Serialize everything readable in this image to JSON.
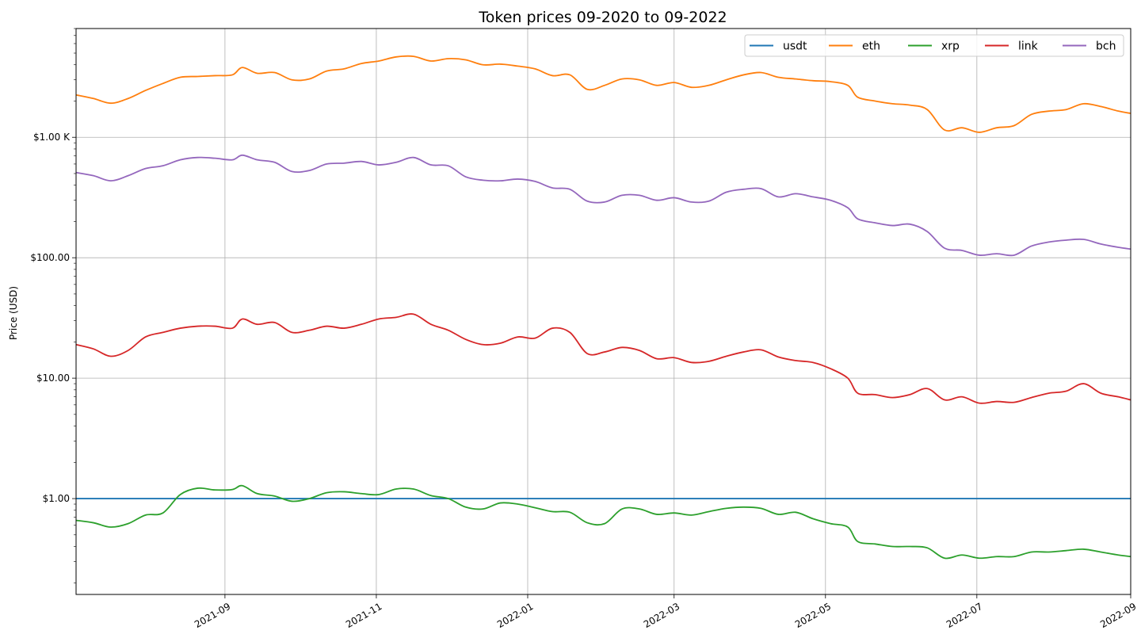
{
  "chart_data": {
    "type": "line",
    "title": "Token prices 09-2020 to 09-2022",
    "xlabel": "",
    "ylabel": "Price (USD)",
    "y_scale": "log",
    "ylim": [
      0.16,
      8000
    ],
    "xlim": [
      "2021-07-03",
      "2022-09-01"
    ],
    "grid": true,
    "legend_position": "top-right",
    "x_tick_labels": [
      "2021-09",
      "2021-11",
      "2022-01",
      "2022-03",
      "2022-05",
      "2022-07",
      "2022-09"
    ],
    "x_tick_dates": [
      "2021-09-01",
      "2021-11-01",
      "2022-01-01",
      "2022-03-01",
      "2022-05-01",
      "2022-07-01",
      "2022-09-01"
    ],
    "y_tick_labels": [
      "$1.00",
      "$10.00",
      "$100.00",
      "$1.00 K"
    ],
    "y_tick_values": [
      1,
      10,
      100,
      1000
    ],
    "series": [
      {
        "name": "usdt",
        "color": "#1f77b4",
        "points": [
          [
            "2021-07-03",
            1.0
          ],
          [
            "2022-09-01",
            1.0
          ]
        ]
      },
      {
        "name": "eth",
        "color": "#ff7f0e",
        "points": [
          [
            "2021-07-03",
            2250
          ],
          [
            "2021-07-10",
            2100
          ],
          [
            "2021-07-17",
            1920
          ],
          [
            "2021-07-24",
            2100
          ],
          [
            "2021-07-31",
            2450
          ],
          [
            "2021-08-07",
            2800
          ],
          [
            "2021-08-14",
            3150
          ],
          [
            "2021-08-21",
            3200
          ],
          [
            "2021-08-28",
            3250
          ],
          [
            "2021-09-04",
            3300
          ],
          [
            "2021-09-08",
            3800
          ],
          [
            "2021-09-14",
            3400
          ],
          [
            "2021-09-21",
            3450
          ],
          [
            "2021-09-28",
            3000
          ],
          [
            "2021-10-05",
            3050
          ],
          [
            "2021-10-12",
            3550
          ],
          [
            "2021-10-19",
            3700
          ],
          [
            "2021-10-26",
            4100
          ],
          [
            "2021-11-02",
            4300
          ],
          [
            "2021-11-09",
            4650
          ],
          [
            "2021-11-16",
            4700
          ],
          [
            "2021-11-23",
            4300
          ],
          [
            "2021-11-30",
            4500
          ],
          [
            "2021-12-07",
            4400
          ],
          [
            "2021-12-14",
            4000
          ],
          [
            "2021-12-21",
            4050
          ],
          [
            "2021-12-28",
            3900
          ],
          [
            "2022-01-04",
            3700
          ],
          [
            "2022-01-11",
            3250
          ],
          [
            "2022-01-18",
            3300
          ],
          [
            "2022-01-25",
            2500
          ],
          [
            "2022-02-01",
            2700
          ],
          [
            "2022-02-08",
            3050
          ],
          [
            "2022-02-15",
            3000
          ],
          [
            "2022-02-22",
            2700
          ],
          [
            "2022-03-01",
            2850
          ],
          [
            "2022-03-08",
            2600
          ],
          [
            "2022-03-15",
            2700
          ],
          [
            "2022-03-22",
            3000
          ],
          [
            "2022-03-29",
            3300
          ],
          [
            "2022-04-05",
            3450
          ],
          [
            "2022-04-12",
            3150
          ],
          [
            "2022-04-19",
            3050
          ],
          [
            "2022-04-26",
            2950
          ],
          [
            "2022-05-03",
            2900
          ],
          [
            "2022-05-10",
            2700
          ],
          [
            "2022-05-14",
            2150
          ],
          [
            "2022-05-21",
            2000
          ],
          [
            "2022-05-28",
            1900
          ],
          [
            "2022-06-04",
            1850
          ],
          [
            "2022-06-11",
            1700
          ],
          [
            "2022-06-18",
            1150
          ],
          [
            "2022-06-25",
            1200
          ],
          [
            "2022-07-02",
            1100
          ],
          [
            "2022-07-09",
            1200
          ],
          [
            "2022-07-16",
            1250
          ],
          [
            "2022-07-23",
            1550
          ],
          [
            "2022-07-30",
            1650
          ],
          [
            "2022-08-06",
            1700
          ],
          [
            "2022-08-13",
            1900
          ],
          [
            "2022-08-20",
            1800
          ],
          [
            "2022-08-27",
            1650
          ],
          [
            "2022-09-01",
            1580
          ]
        ]
      },
      {
        "name": "xrp",
        "color": "#2ca02c",
        "points": [
          [
            "2021-07-03",
            0.66
          ],
          [
            "2021-07-10",
            0.63
          ],
          [
            "2021-07-17",
            0.58
          ],
          [
            "2021-07-24",
            0.62
          ],
          [
            "2021-07-31",
            0.73
          ],
          [
            "2021-08-07",
            0.76
          ],
          [
            "2021-08-14",
            1.08
          ],
          [
            "2021-08-21",
            1.22
          ],
          [
            "2021-08-28",
            1.18
          ],
          [
            "2021-09-04",
            1.19
          ],
          [
            "2021-09-08",
            1.28
          ],
          [
            "2021-09-14",
            1.1
          ],
          [
            "2021-09-21",
            1.05
          ],
          [
            "2021-09-28",
            0.95
          ],
          [
            "2021-10-05",
            1.0
          ],
          [
            "2021-10-12",
            1.12
          ],
          [
            "2021-10-19",
            1.14
          ],
          [
            "2021-10-26",
            1.1
          ],
          [
            "2021-11-02",
            1.08
          ],
          [
            "2021-11-09",
            1.2
          ],
          [
            "2021-11-16",
            1.2
          ],
          [
            "2021-11-23",
            1.06
          ],
          [
            "2021-11-30",
            1.0
          ],
          [
            "2021-12-07",
            0.85
          ],
          [
            "2021-12-14",
            0.82
          ],
          [
            "2021-12-21",
            0.92
          ],
          [
            "2021-12-28",
            0.9
          ],
          [
            "2022-01-04",
            0.84
          ],
          [
            "2022-01-11",
            0.78
          ],
          [
            "2022-01-18",
            0.77
          ],
          [
            "2022-01-25",
            0.63
          ],
          [
            "2022-02-01",
            0.62
          ],
          [
            "2022-02-08",
            0.82
          ],
          [
            "2022-02-15",
            0.82
          ],
          [
            "2022-02-22",
            0.74
          ],
          [
            "2022-03-01",
            0.76
          ],
          [
            "2022-03-08",
            0.73
          ],
          [
            "2022-03-15",
            0.78
          ],
          [
            "2022-03-22",
            0.83
          ],
          [
            "2022-03-29",
            0.85
          ],
          [
            "2022-04-05",
            0.83
          ],
          [
            "2022-04-12",
            0.74
          ],
          [
            "2022-04-19",
            0.77
          ],
          [
            "2022-04-26",
            0.68
          ],
          [
            "2022-05-03",
            0.62
          ],
          [
            "2022-05-10",
            0.58
          ],
          [
            "2022-05-14",
            0.44
          ],
          [
            "2022-05-21",
            0.42
          ],
          [
            "2022-05-28",
            0.4
          ],
          [
            "2022-06-04",
            0.4
          ],
          [
            "2022-06-11",
            0.39
          ],
          [
            "2022-06-18",
            0.32
          ],
          [
            "2022-06-25",
            0.34
          ],
          [
            "2022-07-02",
            0.32
          ],
          [
            "2022-07-09",
            0.33
          ],
          [
            "2022-07-16",
            0.33
          ],
          [
            "2022-07-23",
            0.36
          ],
          [
            "2022-07-30",
            0.36
          ],
          [
            "2022-08-06",
            0.37
          ],
          [
            "2022-08-13",
            0.38
          ],
          [
            "2022-08-20",
            0.36
          ],
          [
            "2022-08-27",
            0.34
          ],
          [
            "2022-09-01",
            0.33
          ]
        ]
      },
      {
        "name": "link",
        "color": "#d62728",
        "points": [
          [
            "2021-07-03",
            19
          ],
          [
            "2021-07-10",
            17.5
          ],
          [
            "2021-07-17",
            15.2
          ],
          [
            "2021-07-24",
            17
          ],
          [
            "2021-07-31",
            22
          ],
          [
            "2021-08-07",
            24
          ],
          [
            "2021-08-14",
            26
          ],
          [
            "2021-08-21",
            27
          ],
          [
            "2021-08-28",
            27
          ],
          [
            "2021-09-04",
            26
          ],
          [
            "2021-09-08",
            31
          ],
          [
            "2021-09-14",
            28
          ],
          [
            "2021-09-21",
            29
          ],
          [
            "2021-09-28",
            24
          ],
          [
            "2021-10-05",
            25
          ],
          [
            "2021-10-12",
            27
          ],
          [
            "2021-10-19",
            26
          ],
          [
            "2021-10-26",
            28
          ],
          [
            "2021-11-02",
            31
          ],
          [
            "2021-11-09",
            32
          ],
          [
            "2021-11-16",
            34
          ],
          [
            "2021-11-23",
            28
          ],
          [
            "2021-11-30",
            25
          ],
          [
            "2021-12-07",
            21
          ],
          [
            "2021-12-14",
            19
          ],
          [
            "2021-12-21",
            19.5
          ],
          [
            "2021-12-28",
            22
          ],
          [
            "2022-01-04",
            21.5
          ],
          [
            "2022-01-11",
            26
          ],
          [
            "2022-01-18",
            24
          ],
          [
            "2022-01-25",
            16
          ],
          [
            "2022-02-01",
            16.5
          ],
          [
            "2022-02-08",
            18
          ],
          [
            "2022-02-15",
            17
          ],
          [
            "2022-02-22",
            14.5
          ],
          [
            "2022-03-01",
            14.8
          ],
          [
            "2022-03-08",
            13.5
          ],
          [
            "2022-03-15",
            13.8
          ],
          [
            "2022-03-22",
            15.2
          ],
          [
            "2022-03-29",
            16.5
          ],
          [
            "2022-04-05",
            17.2
          ],
          [
            "2022-04-12",
            15
          ],
          [
            "2022-04-19",
            14
          ],
          [
            "2022-04-26",
            13.5
          ],
          [
            "2022-05-03",
            12
          ],
          [
            "2022-05-10",
            10
          ],
          [
            "2022-05-14",
            7.5
          ],
          [
            "2022-05-21",
            7.3
          ],
          [
            "2022-05-28",
            6.9
          ],
          [
            "2022-06-04",
            7.3
          ],
          [
            "2022-06-11",
            8.2
          ],
          [
            "2022-06-18",
            6.6
          ],
          [
            "2022-06-25",
            7
          ],
          [
            "2022-07-02",
            6.2
          ],
          [
            "2022-07-09",
            6.4
          ],
          [
            "2022-07-16",
            6.3
          ],
          [
            "2022-07-23",
            6.9
          ],
          [
            "2022-07-30",
            7.5
          ],
          [
            "2022-08-06",
            7.8
          ],
          [
            "2022-08-13",
            9
          ],
          [
            "2022-08-20",
            7.5
          ],
          [
            "2022-08-27",
            7
          ],
          [
            "2022-09-01",
            6.6
          ]
        ]
      },
      {
        "name": "bch",
        "color": "#9467bd",
        "points": [
          [
            "2021-07-03",
            510
          ],
          [
            "2021-07-10",
            480
          ],
          [
            "2021-07-17",
            435
          ],
          [
            "2021-07-24",
            480
          ],
          [
            "2021-07-31",
            550
          ],
          [
            "2021-08-07",
            580
          ],
          [
            "2021-08-14",
            650
          ],
          [
            "2021-08-21",
            680
          ],
          [
            "2021-08-28",
            670
          ],
          [
            "2021-09-04",
            650
          ],
          [
            "2021-09-08",
            710
          ],
          [
            "2021-09-14",
            650
          ],
          [
            "2021-09-21",
            620
          ],
          [
            "2021-09-28",
            520
          ],
          [
            "2021-10-05",
            530
          ],
          [
            "2021-10-12",
            600
          ],
          [
            "2021-10-19",
            610
          ],
          [
            "2021-10-26",
            630
          ],
          [
            "2021-11-02",
            590
          ],
          [
            "2021-11-09",
            620
          ],
          [
            "2021-11-16",
            680
          ],
          [
            "2021-11-23",
            590
          ],
          [
            "2021-11-30",
            580
          ],
          [
            "2021-12-07",
            470
          ],
          [
            "2021-12-14",
            440
          ],
          [
            "2021-12-21",
            435
          ],
          [
            "2021-12-28",
            450
          ],
          [
            "2022-01-04",
            430
          ],
          [
            "2022-01-11",
            380
          ],
          [
            "2022-01-18",
            370
          ],
          [
            "2022-01-25",
            295
          ],
          [
            "2022-02-01",
            290
          ],
          [
            "2022-02-08",
            330
          ],
          [
            "2022-02-15",
            330
          ],
          [
            "2022-02-22",
            300
          ],
          [
            "2022-03-01",
            315
          ],
          [
            "2022-03-08",
            290
          ],
          [
            "2022-03-15",
            295
          ],
          [
            "2022-03-22",
            350
          ],
          [
            "2022-03-29",
            370
          ],
          [
            "2022-04-05",
            375
          ],
          [
            "2022-04-12",
            320
          ],
          [
            "2022-04-19",
            340
          ],
          [
            "2022-04-26",
            320
          ],
          [
            "2022-05-03",
            300
          ],
          [
            "2022-05-10",
            260
          ],
          [
            "2022-05-14",
            210
          ],
          [
            "2022-05-21",
            195
          ],
          [
            "2022-05-28",
            185
          ],
          [
            "2022-06-04",
            190
          ],
          [
            "2022-06-11",
            165
          ],
          [
            "2022-06-18",
            120
          ],
          [
            "2022-06-25",
            115
          ],
          [
            "2022-07-02",
            105
          ],
          [
            "2022-07-09",
            108
          ],
          [
            "2022-07-16",
            105
          ],
          [
            "2022-07-23",
            125
          ],
          [
            "2022-07-30",
            135
          ],
          [
            "2022-08-06",
            140
          ],
          [
            "2022-08-13",
            142
          ],
          [
            "2022-08-20",
            130
          ],
          [
            "2022-08-27",
            122
          ],
          [
            "2022-09-01",
            118
          ]
        ]
      }
    ]
  }
}
